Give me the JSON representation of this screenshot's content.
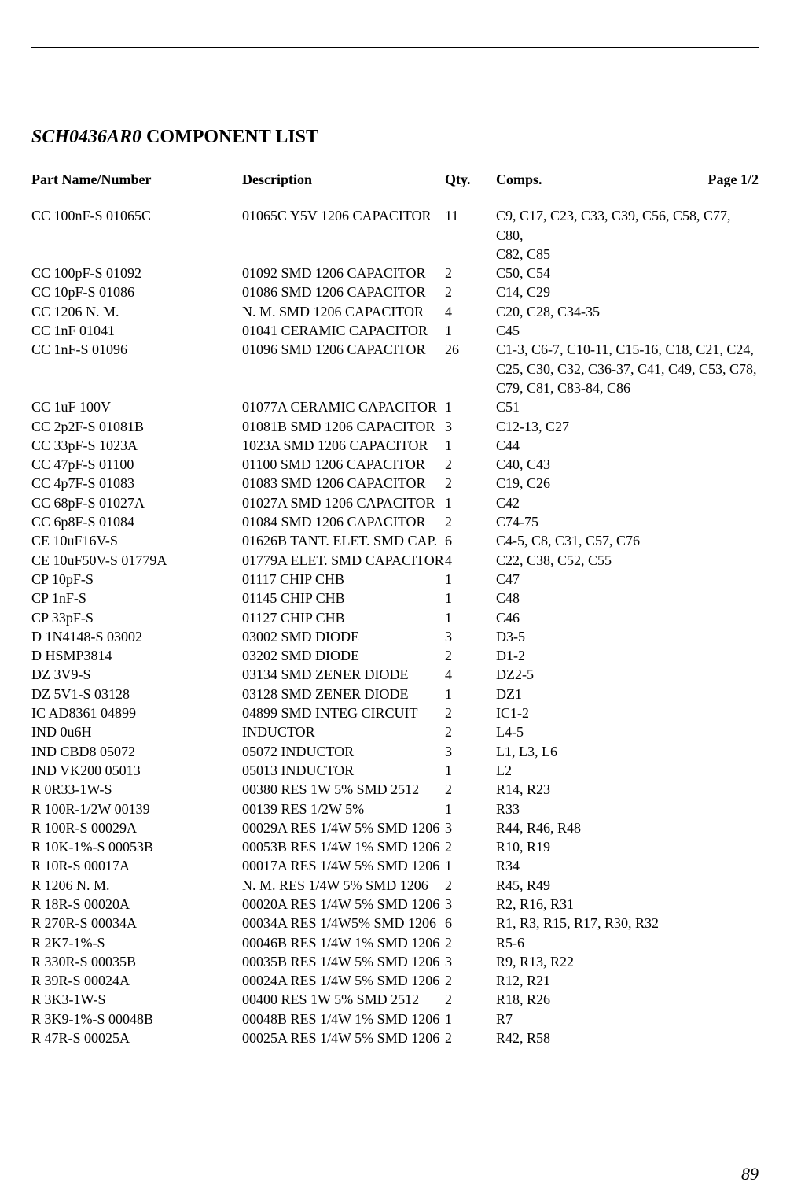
{
  "title_italic": "SCH0436AR0",
  "title_rest": " COMPONENT LIST",
  "headers": {
    "part": "Part Name/Number",
    "desc": "Description",
    "qty": "Qty.",
    "comp": "Comps.",
    "page": "Page 1/2"
  },
  "page_number": "89",
  "rows": [
    {
      "part": "CC 100nF-S 01065C",
      "desc": "01065C Y5V 1206 CAPACITOR",
      "qty": "11",
      "comp": "C9, C17, C23, C33, C39, C56, C58, C77, C80,"
    },
    {
      "part": "",
      "desc": "",
      "qty": "",
      "comp": "C82, C85"
    },
    {
      "part": "CC 100pF-S 01092",
      "desc": "01092 SMD 1206 CAPACITOR",
      "qty": "2",
      "comp": "C50, C54"
    },
    {
      "part": "CC 10pF-S 01086",
      "desc": "01086 SMD 1206 CAPACITOR",
      "qty": "2",
      "comp": "C14, C29"
    },
    {
      "part": "CC 1206 N. M.",
      "desc": "N. M. SMD 1206 CAPACITOR",
      "qty": "4",
      "comp": "C20, C28, C34-35"
    },
    {
      "part": "CC 1nF 01041",
      "desc": "01041 CERAMIC CAPACITOR",
      "qty": "1",
      "comp": "C45"
    },
    {
      "part": "CC 1nF-S 01096",
      "desc": "01096 SMD 1206 CAPACITOR",
      "qty": "26",
      "comp": "C1-3, C6-7, C10-11, C15-16, C18, C21, C24,"
    },
    {
      "part": "",
      "desc": "",
      "qty": "",
      "comp": "C25, C30, C32, C36-37, C41, C49, C53, C78,"
    },
    {
      "part": "",
      "desc": "",
      "qty": "",
      "comp": "C79, C81, C83-84, C86"
    },
    {
      "part": "CC 1uF 100V",
      "desc": "01077A CERAMIC CAPACITOR",
      "qty": "1",
      "comp": "C51"
    },
    {
      "part": "CC 2p2F-S 01081B",
      "desc": "01081B SMD 1206 CAPACITOR",
      "qty": "3",
      "comp": "C12-13, C27"
    },
    {
      "part": "CC 33pF-S 1023A",
      "desc": "1023A SMD 1206 CAPACITOR",
      "qty": "1",
      "comp": "C44"
    },
    {
      "part": "CC 47pF-S 01100",
      "desc": "01100 SMD 1206 CAPACITOR",
      "qty": "2",
      "comp": "C40, C43"
    },
    {
      "part": "CC 4p7F-S 01083",
      "desc": "01083 SMD 1206 CAPACITOR",
      "qty": "2",
      "comp": "C19, C26"
    },
    {
      "part": "CC 68pF-S 01027A",
      "desc": "01027A SMD 1206 CAPACITOR",
      "qty": "1",
      "comp": "C42"
    },
    {
      "part": "CC 6p8F-S 01084",
      "desc": "01084 SMD 1206 CAPACITOR",
      "qty": "2",
      "comp": "C74-75"
    },
    {
      "part": "CE 10uF16V-S",
      "desc": "01626B TANT. ELET. SMD CAP.",
      "qty": "6",
      "comp": "C4-5, C8, C31, C57, C76"
    },
    {
      "part": "CE 10uF50V-S 01779A",
      "desc": "01779A ELET. SMD CAPACITOR",
      "qty": "4",
      "comp": "C22, C38, C52, C55"
    },
    {
      "part": "CP 10pF-S",
      "desc": "01117 CHIP CHB",
      "qty": "1",
      "comp": "C47"
    },
    {
      "part": "CP 1nF-S",
      "desc": "01145 CHIP CHB",
      "qty": "1",
      "comp": "C48"
    },
    {
      "part": "CP 33pF-S",
      "desc": "01127 CHIP CHB",
      "qty": "1",
      "comp": "C46"
    },
    {
      "part": "D 1N4148-S 03002",
      "desc": "03002 SMD DIODE",
      "qty": "3",
      "comp": "D3-5"
    },
    {
      "part": "D HSMP3814",
      "desc": "03202 SMD DIODE",
      "qty": "2",
      "comp": "D1-2"
    },
    {
      "part": "DZ 3V9-S",
      "desc": "03134 SMD ZENER DIODE",
      "qty": "4",
      "comp": "DZ2-5"
    },
    {
      "part": "DZ 5V1-S 03128",
      "desc": "03128 SMD ZENER DIODE",
      "qty": "1",
      "comp": "DZ1"
    },
    {
      "part": "IC AD8361 04899",
      "desc": "04899 SMD INTEG CIRCUIT",
      "qty": "2",
      "comp": "IC1-2"
    },
    {
      "part": "IND 0u6H",
      "desc": "INDUCTOR",
      "qty": "2",
      "comp": "L4-5"
    },
    {
      "part": "IND CBD8 05072",
      "desc": "05072 INDUCTOR",
      "qty": "3",
      "comp": "L1, L3, L6"
    },
    {
      "part": "IND VK200 05013",
      "desc": "05013 INDUCTOR",
      "qty": "1",
      "comp": "L2"
    },
    {
      "part": "R 0R33-1W-S",
      "desc": "00380 RES 1W 5% SMD 2512",
      "qty": "2",
      "comp": "R14, R23"
    },
    {
      "part": "R 100R-1/2W 00139",
      "desc": "00139 RES 1/2W 5%",
      "qty": "1",
      "comp": "R33"
    },
    {
      "part": "R 100R-S 00029A",
      "desc": "00029A RES 1/4W 5% SMD 1206",
      "qty": "3",
      "comp": "R44, R46, R48"
    },
    {
      "part": "R 10K-1%-S 00053B",
      "desc": "00053B RES 1/4W 1% SMD 1206",
      "qty": "2",
      "comp": "R10, R19"
    },
    {
      "part": "R 10R-S 00017A",
      "desc": "00017A RES 1/4W 5% SMD 1206",
      "qty": "1",
      "comp": "R34"
    },
    {
      "part": "R 1206 N. M.",
      "desc": "N. M. RES 1/4W 5% SMD 1206",
      "qty": "2",
      "comp": "R45, R49"
    },
    {
      "part": "R 18R-S 00020A",
      "desc": "00020A RES 1/4W 5% SMD 1206",
      "qty": "3",
      "comp": "R2, R16, R31"
    },
    {
      "part": "R 270R-S 00034A",
      "desc": "00034A RES 1/4W5% SMD 1206",
      "qty": "6",
      "comp": "R1, R3, R15, R17, R30, R32"
    },
    {
      "part": "R 2K7-1%-S",
      "desc": "00046B RES 1/4W 1% SMD 1206",
      "qty": "2",
      "comp": "R5-6"
    },
    {
      "part": "R 330R-S 00035B",
      "desc": "00035B RES 1/4W 5% SMD 1206",
      "qty": "3",
      "comp": "R9, R13, R22"
    },
    {
      "part": "R 39R-S 00024A",
      "desc": "00024A RES 1/4W 5% SMD 1206",
      "qty": "2",
      "comp": "R12, R21"
    },
    {
      "part": "R 3K3-1W-S",
      "desc": "00400 RES 1W 5% SMD 2512",
      "qty": "2",
      "comp": "R18, R26"
    },
    {
      "part": "R 3K9-1%-S 00048B",
      "desc": "00048B RES 1/4W 1% SMD 1206",
      "qty": "1",
      "comp": "R7"
    },
    {
      "part": "R 47R-S 00025A",
      "desc": "00025A RES 1/4W 5% SMD 1206",
      "qty": "2",
      "comp": "R42, R58"
    }
  ]
}
